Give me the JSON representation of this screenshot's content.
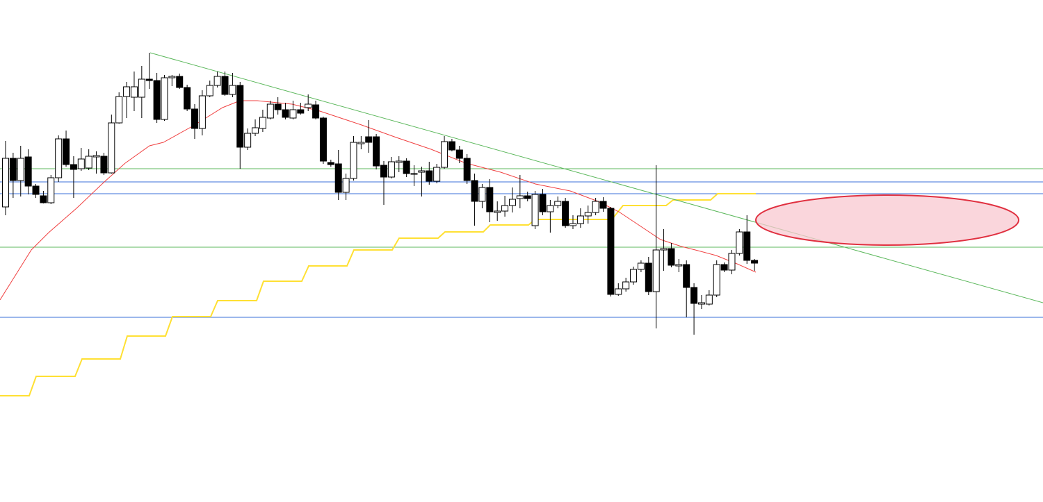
{
  "chart_data": {
    "type": "candlestick",
    "ylim": [
      -723,
      0
    ],
    "up_color": "#ffffff",
    "down_color": "#000000",
    "edge_color": "#000000",
    "open": [
      -298,
      -228,
      -260,
      -226,
      -268,
      -282,
      -292,
      -256,
      -200,
      -237,
      -243,
      -242,
      -226,
      -225,
      -249,
      -177,
      -139,
      -140,
      -140,
      -114,
      -116,
      -172,
      -112,
      -110,
      -126,
      -157,
      -185,
      -138,
      -123,
      -110,
      -136,
      -123,
      -212,
      -192,
      -185,
      -170,
      -150,
      -158,
      -170,
      -158,
      -155,
      -151,
      -170,
      -234,
      -236,
      -277,
      -257,
      -207,
      -197,
      -197,
      -238,
      -255,
      -234,
      -232,
      -250,
      -248,
      -246,
      -261,
      -241,
      -204,
      -216,
      -228,
      -260,
      -290,
      -270,
      -306,
      -304,
      -296,
      -286,
      -282,
      -325,
      -280,
      -305,
      -296,
      -290,
      -325,
      -322,
      -311,
      -306,
      -290,
      -300,
      -424,
      -416,
      -406,
      -388,
      -379,
      -420,
      -360,
      -358,
      -383,
      -381,
      -414,
      -438,
      -438,
      -425,
      -381,
      -389,
      -365,
      -334,
      -375
    ],
    "high": [
      -203,
      -220,
      -210,
      -215,
      -265,
      -275,
      -252,
      -195,
      -188,
      -225,
      -213,
      -215,
      -218,
      -220,
      -165,
      -133,
      -118,
      -103,
      -95,
      -76,
      -105,
      -108,
      -108,
      -106,
      -122,
      -150,
      -130,
      -116,
      -103,
      -103,
      -105,
      -118,
      -185,
      -172,
      -158,
      -145,
      -140,
      -148,
      -145,
      -148,
      -136,
      -145,
      -168,
      -230,
      -216,
      -250,
      -196,
      -196,
      -173,
      -193,
      -232,
      -226,
      -225,
      -228,
      -238,
      -240,
      -233,
      -236,
      -196,
      -200,
      -210,
      -222,
      -250,
      -265,
      -258,
      -290,
      -282,
      -270,
      -252,
      -276,
      -275,
      -272,
      -288,
      -283,
      -285,
      -310,
      -300,
      -296,
      -285,
      -284,
      -298,
      -408,
      -400,
      -384,
      -375,
      -370,
      -238,
      -330,
      -350,
      -373,
      -375,
      -408,
      -425,
      -418,
      -375,
      -378,
      -360,
      -330,
      -310,
      -373
    ],
    "low": [
      -310,
      -285,
      -283,
      -280,
      -285,
      -293,
      -294,
      -262,
      -240,
      -285,
      -246,
      -245,
      -250,
      -252,
      -250,
      -178,
      -170,
      -160,
      -170,
      -128,
      -177,
      -174,
      -124,
      -128,
      -160,
      -200,
      -195,
      -140,
      -126,
      -138,
      -140,
      -243,
      -216,
      -196,
      -190,
      -172,
      -165,
      -172,
      -172,
      -165,
      -160,
      -172,
      -236,
      -240,
      -288,
      -288,
      -260,
      -215,
      -220,
      -244,
      -295,
      -257,
      -248,
      -255,
      -268,
      -283,
      -266,
      -264,
      -243,
      -218,
      -235,
      -265,
      -325,
      -300,
      -320,
      -318,
      -312,
      -306,
      -300,
      -290,
      -330,
      -310,
      -335,
      -300,
      -328,
      -330,
      -328,
      -322,
      -310,
      -305,
      -427,
      -426,
      -420,
      -410,
      -392,
      -425,
      -473,
      -390,
      -385,
      -392,
      -457,
      -482,
      -445,
      -440,
      -428,
      -392,
      -395,
      -368,
      -380,
      -390
    ],
    "close": [
      -228,
      -260,
      -228,
      -268,
      -280,
      -292,
      -256,
      -200,
      -237,
      -244,
      -229,
      -225,
      -224,
      -249,
      -177,
      -139,
      -125,
      -125,
      -114,
      -116,
      -172,
      -112,
      -110,
      -126,
      -157,
      -185,
      -138,
      -123,
      -110,
      -136,
      -123,
      -212,
      -192,
      -184,
      -169,
      -150,
      -158,
      -169,
      -158,
      -163,
      -150,
      -170,
      -232,
      -237,
      -277,
      -257,
      -205,
      -205,
      -205,
      -239,
      -255,
      -233,
      -232,
      -250,
      -251,
      -246,
      -261,
      -241,
      -204,
      -216,
      -228,
      -260,
      -290,
      -270,
      -305,
      -304,
      -296,
      -287,
      -282,
      -286,
      -280,
      -305,
      -296,
      -290,
      -325,
      -322,
      -311,
      -306,
      -290,
      -300,
      -424,
      -416,
      -406,
      -388,
      -379,
      -420,
      -360,
      -358,
      -382,
      -381,
      -414,
      -437,
      -436,
      -425,
      -381,
      -389,
      -365,
      -334,
      -375,
      -379
    ],
    "hlines": [
      {
        "value": -243,
        "color": "#5cb85c"
      },
      {
        "value": -356,
        "color": "#5cb85c"
      },
      {
        "value": -262,
        "color": "#3a6fd8"
      },
      {
        "value": -279,
        "color": "#3a6fd8"
      },
      {
        "value": -457,
        "color": "#3a6fd8"
      }
    ]
  }
}
